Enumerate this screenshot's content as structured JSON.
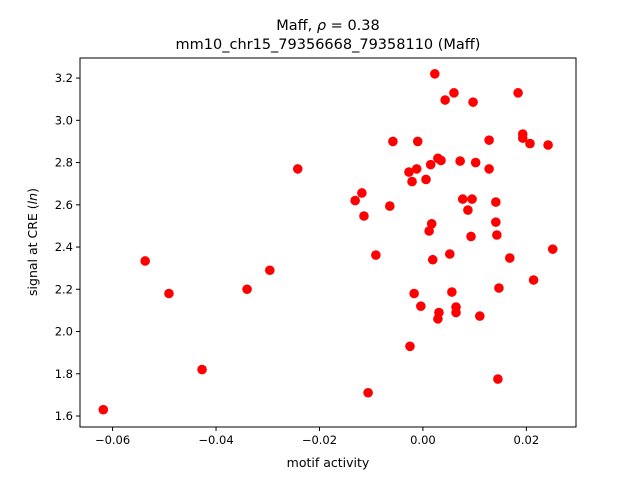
{
  "chart_data": {
    "type": "scatter",
    "title_prefix": "Maff, ",
    "title_rho_symbol": "ρ",
    "title_rho_value": " = 0.38",
    "subtitle": "mm10_chr15_79356668_79358110 (Maff)",
    "xlabel": "motif activity",
    "ylabel_prefix": "signal at CRE (",
    "ylabel_italic": "ln",
    "ylabel_suffix": ")",
    "xlim": [
      -0.0663,
      0.0296
    ],
    "ylim": [
      1.548,
      3.295
    ],
    "xticks": [
      -0.06,
      -0.04,
      -0.02,
      0.0,
      0.02
    ],
    "xtick_labels": [
      "−0.06",
      "−0.04",
      "−0.02",
      "0.00",
      "0.02"
    ],
    "yticks": [
      1.6,
      1.8,
      2.0,
      2.2,
      2.4,
      2.6,
      2.8,
      3.0,
      3.2
    ],
    "ytick_labels": [
      "1.6",
      "1.8",
      "2.0",
      "2.2",
      "2.4",
      "2.6",
      "2.8",
      "3.0",
      "3.2"
    ],
    "grid": false,
    "marker_color": "#ff0000",
    "points": [
      [
        -0.0618,
        1.63
      ],
      [
        -0.0537,
        2.334
      ],
      [
        -0.0491,
        2.18
      ],
      [
        -0.0427,
        1.82
      ],
      [
        -0.034,
        2.2
      ],
      [
        -0.0296,
        2.29
      ],
      [
        -0.0242,
        2.77
      ],
      [
        -0.0131,
        2.62
      ],
      [
        -0.0118,
        2.656
      ],
      [
        -0.0114,
        2.547
      ],
      [
        -0.0106,
        1.71
      ],
      [
        -0.0091,
        2.362
      ],
      [
        -0.0064,
        2.594
      ],
      [
        -0.0058,
        2.9
      ],
      [
        -0.0027,
        2.755
      ],
      [
        -0.0025,
        1.93
      ],
      [
        -0.0021,
        2.71
      ],
      [
        -0.0017,
        2.18
      ],
      [
        -0.0012,
        2.77
      ],
      [
        -0.001,
        2.9
      ],
      [
        -0.0004,
        2.12
      ],
      [
        0.0006,
        2.72
      ],
      [
        0.0012,
        2.476
      ],
      [
        0.0015,
        2.79
      ],
      [
        0.0017,
        2.51
      ],
      [
        0.0019,
        2.34
      ],
      [
        0.0023,
        3.22
      ],
      [
        0.0029,
        2.82
      ],
      [
        0.0029,
        2.06
      ],
      [
        0.0031,
        2.09
      ],
      [
        0.0035,
        2.81
      ],
      [
        0.0043,
        3.096
      ],
      [
        0.0052,
        2.367
      ],
      [
        0.0056,
        2.187
      ],
      [
        0.006,
        3.13
      ],
      [
        0.0064,
        2.116
      ],
      [
        0.0064,
        2.09
      ],
      [
        0.0072,
        2.807
      ],
      [
        0.0077,
        2.627
      ],
      [
        0.0087,
        2.575
      ],
      [
        0.0093,
        2.45
      ],
      [
        0.0095,
        2.627
      ],
      [
        0.0097,
        3.086
      ],
      [
        0.0102,
        2.8
      ],
      [
        0.011,
        2.073
      ],
      [
        0.0128,
        2.77
      ],
      [
        0.0128,
        2.906
      ],
      [
        0.0141,
        2.613
      ],
      [
        0.0141,
        2.518
      ],
      [
        0.0143,
        2.457
      ],
      [
        0.0145,
        1.775
      ],
      [
        0.0147,
        2.206
      ],
      [
        0.0168,
        2.348
      ],
      [
        0.0184,
        3.13
      ],
      [
        0.0193,
        2.935
      ],
      [
        0.0193,
        2.916
      ],
      [
        0.0207,
        2.89
      ],
      [
        0.0214,
        2.244
      ],
      [
        0.0242,
        2.883
      ],
      [
        0.0251,
        2.39
      ]
    ]
  }
}
